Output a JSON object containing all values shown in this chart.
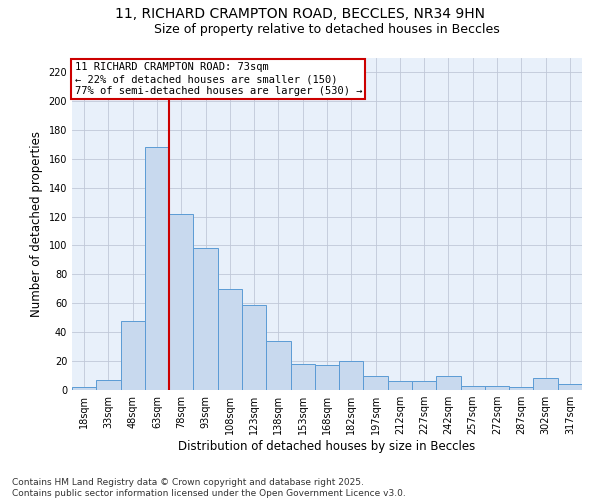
{
  "title_line1": "11, RICHARD CRAMPTON ROAD, BECCLES, NR34 9HN",
  "title_line2": "Size of property relative to detached houses in Beccles",
  "xlabel": "Distribution of detached houses by size in Beccles",
  "ylabel": "Number of detached properties",
  "bar_color": "#c8d9ee",
  "bar_edge_color": "#5b9bd5",
  "background_color": "#ffffff",
  "plot_bg_color": "#e8f0fa",
  "grid_color": "#c0c8d8",
  "annotation_box_color": "#cc0000",
  "vline_color": "#cc0000",
  "categories": [
    "18sqm",
    "33sqm",
    "48sqm",
    "63sqm",
    "78sqm",
    "93sqm",
    "108sqm",
    "123sqm",
    "138sqm",
    "153sqm",
    "168sqm",
    "182sqm",
    "197sqm",
    "212sqm",
    "227sqm",
    "242sqm",
    "257sqm",
    "272sqm",
    "287sqm",
    "302sqm",
    "317sqm"
  ],
  "values": [
    2,
    7,
    48,
    168,
    122,
    98,
    70,
    59,
    34,
    18,
    17,
    20,
    10,
    6,
    6,
    10,
    3,
    3,
    2,
    8,
    4
  ],
  "ylim": [
    0,
    230
  ],
  "yticks": [
    0,
    20,
    40,
    60,
    80,
    100,
    120,
    140,
    160,
    180,
    200,
    220
  ],
  "vline_x_index": 3,
  "annotation_line1": "11 RICHARD CRAMPTON ROAD: 73sqm",
  "annotation_line2": "← 22% of detached houses are smaller (150)",
  "annotation_line3": "77% of semi-detached houses are larger (530) →",
  "footer_text": "Contains HM Land Registry data © Crown copyright and database right 2025.\nContains public sector information licensed under the Open Government Licence v3.0.",
  "title_fontsize": 10,
  "subtitle_fontsize": 9,
  "axis_label_fontsize": 8.5,
  "tick_fontsize": 7,
  "annotation_fontsize": 7.5,
  "footer_fontsize": 6.5
}
